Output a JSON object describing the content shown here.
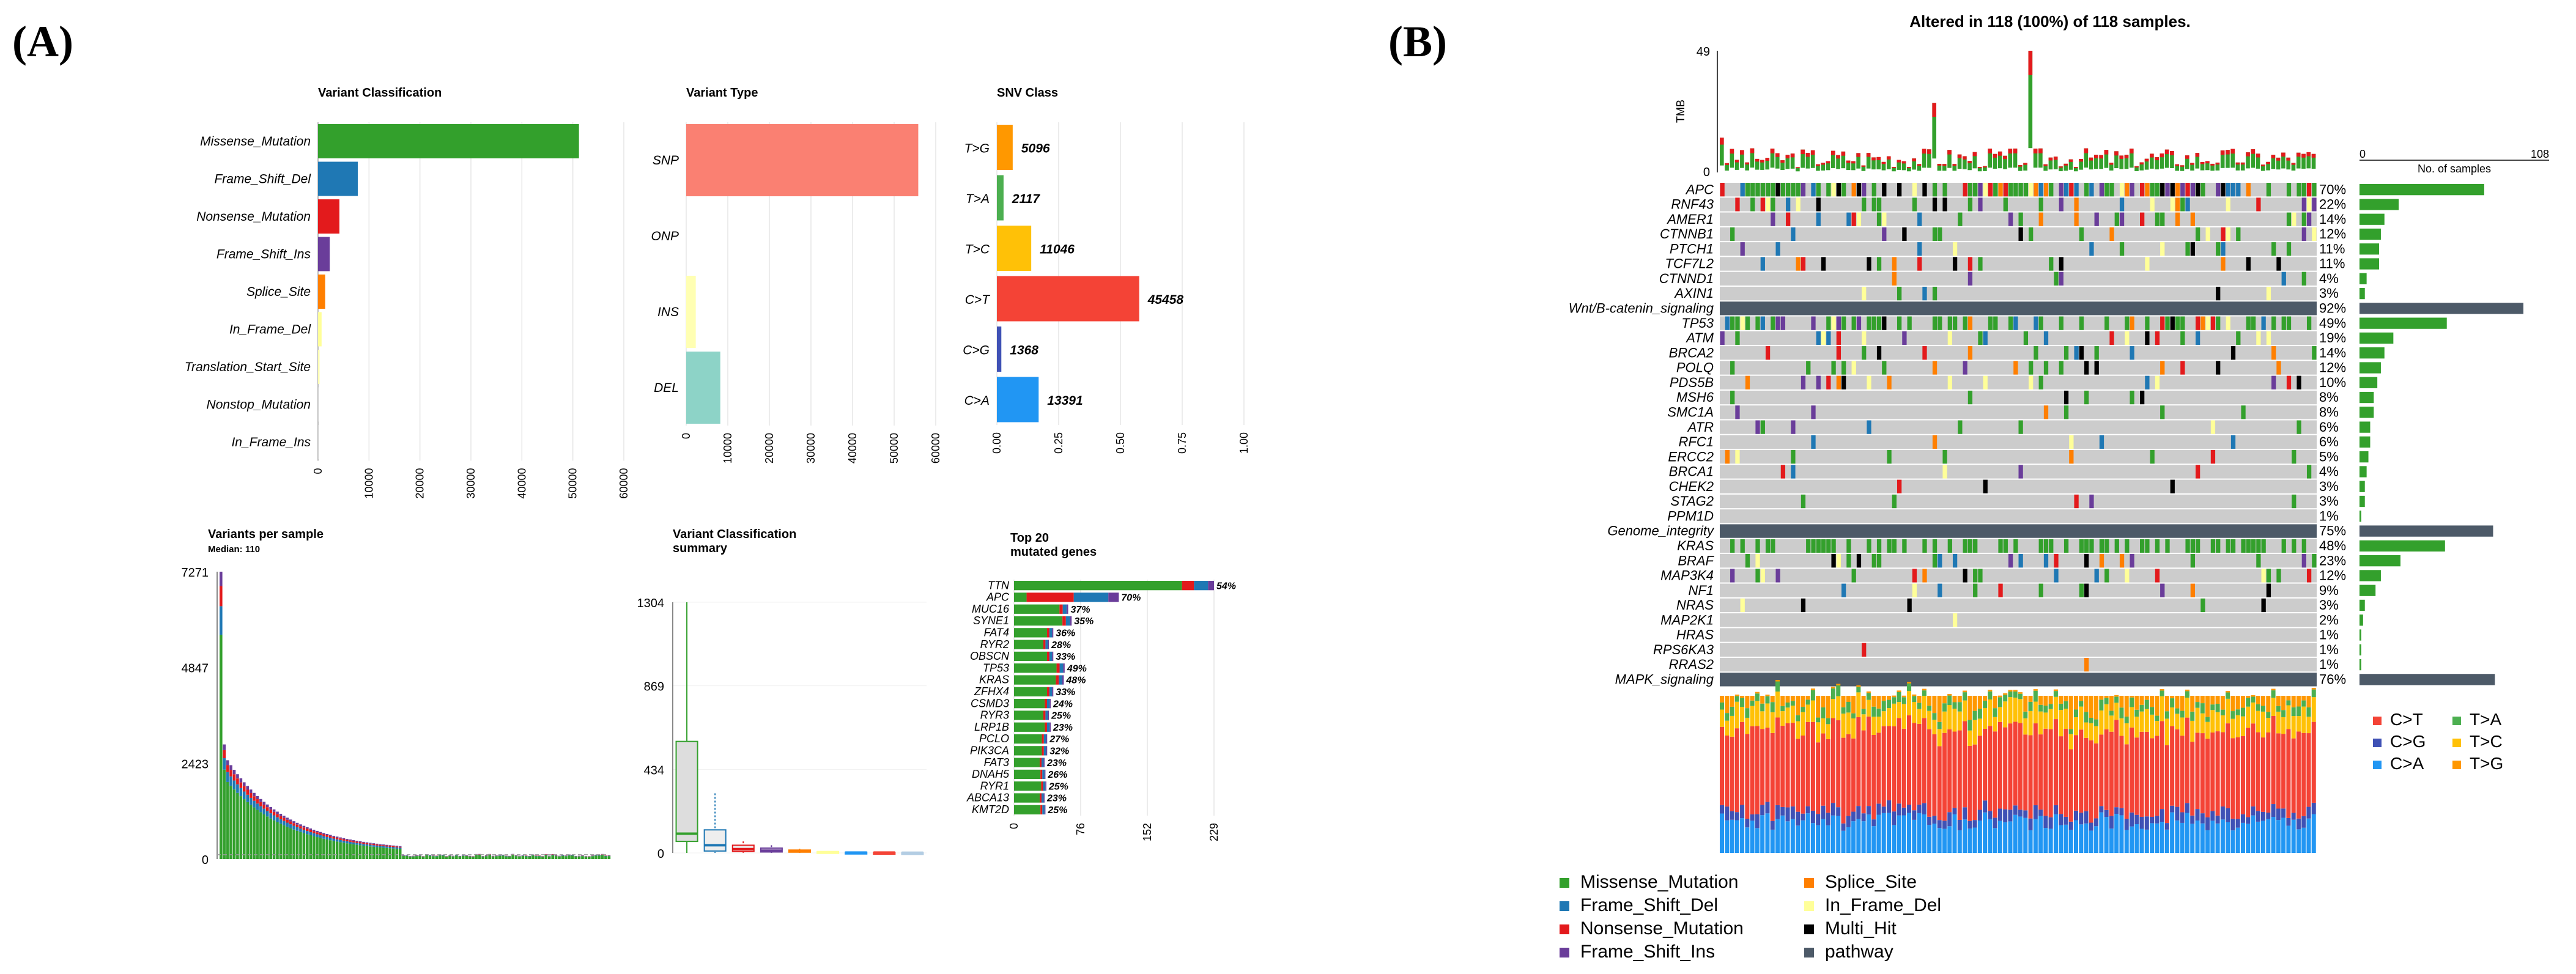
{
  "panels": {
    "a_label": "(A)",
    "b_label": "(B)"
  },
  "colors": {
    "missense": "#33a02c",
    "frameshift_del": "#1f78b4",
    "nonsense": "#e31a1c",
    "frameshift_ins": "#6a3d9a",
    "splice": "#ff7f00",
    "inframe_del": "#ffff99",
    "multihit": "#000000",
    "pathway": "#4d5a68",
    "grey": "#cccccc",
    "snp": "#fa8072",
    "ins": "#ffffb3",
    "del": "#8dd3c7",
    "ct": "#f44336",
    "ta": "#4caf50",
    "cg": "#3f51b5",
    "tc": "#ffc107",
    "ca": "#2196f3",
    "tg": "#ff9800"
  },
  "chart_data": [
    {
      "id": "variant_classification",
      "type": "bar",
      "orientation": "horizontal",
      "title": "Variant Classification",
      "categories": [
        "Missense_Mutation",
        "Frame_Shift_Del",
        "Nonsense_Mutation",
        "Frame_Shift_Ins",
        "Splice_Site",
        "In_Frame_Del",
        "Translation_Start_Site",
        "Nonstop_Mutation",
        "In_Frame_Ins"
      ],
      "values": [
        51200,
        7800,
        4200,
        2300,
        1400,
        700,
        300,
        80,
        40
      ],
      "xlim": [
        0,
        60000
      ],
      "xticks": [
        "0",
        "10000",
        "20000",
        "30000",
        "40000",
        "50000",
        "60000"
      ]
    },
    {
      "id": "variant_type",
      "type": "bar",
      "orientation": "horizontal",
      "title": "Variant Type",
      "categories": [
        "SNP",
        "ONP",
        "INS",
        "DEL"
      ],
      "values": [
        55800,
        80,
        2300,
        8200
      ],
      "xlim": [
        0,
        60000
      ],
      "xticks": [
        "0",
        "10000",
        "20000",
        "30000",
        "40000",
        "50000",
        "60000"
      ]
    },
    {
      "id": "snv_class",
      "type": "bar",
      "orientation": "horizontal",
      "title": "SNV Class",
      "categories": [
        "T>G",
        "T>A",
        "T>C",
        "C>T",
        "C>G",
        "C>A"
      ],
      "values": [
        0.064,
        0.027,
        0.139,
        0.576,
        0.018,
        0.169
      ],
      "labels": [
        "5096",
        "2117",
        "11046",
        "45458",
        "1368",
        "13391"
      ],
      "xlim": [
        0,
        1
      ],
      "xticks": [
        "0.00",
        "0.25",
        "0.50",
        "0.75",
        "1.00"
      ]
    },
    {
      "id": "variants_per_sample",
      "type": "bar",
      "title": "Variants per sample",
      "subtitle": "Median: 110",
      "ylim": [
        0,
        7271
      ],
      "yticks": [
        "0",
        "2423",
        "4847",
        "7271"
      ],
      "n_samples": 118
    },
    {
      "id": "vc_summary",
      "type": "boxplot",
      "title": "Variant Classification",
      "title2": "summary",
      "ylim": [
        0,
        1304
      ],
      "yticks": [
        "0",
        "434",
        "869",
        "1304"
      ],
      "boxes": [
        {
          "name": "Missense_Mutation",
          "min": 0,
          "q1": 60,
          "median": 100,
          "q3": 580,
          "max": 1304
        },
        {
          "name": "Frame_Shift_Del",
          "min": 0,
          "q1": 10,
          "median": 40,
          "q3": 120,
          "max": 310
        },
        {
          "name": "Nonsense_Mutation",
          "min": 0,
          "q1": 8,
          "median": 20,
          "q3": 40,
          "max": 60
        },
        {
          "name": "Frame_Shift_Ins",
          "min": 0,
          "q1": 5,
          "median": 12,
          "q3": 25,
          "max": 40
        },
        {
          "name": "Splice_Site",
          "min": 0,
          "q1": 4,
          "median": 8,
          "q3": 15,
          "max": 22
        },
        {
          "name": "In_Frame_Del",
          "min": 0,
          "q1": 2,
          "median": 4,
          "q3": 7,
          "max": 10
        },
        {
          "name": "Translation_Start_Site",
          "min": 0,
          "q1": 1,
          "median": 2,
          "q3": 4,
          "max": 6
        },
        {
          "name": "Nonstop_Mutation",
          "min": 0,
          "q1": 1,
          "median": 2,
          "q3": 3,
          "max": 4
        },
        {
          "name": "In_Frame_Ins",
          "min": 0,
          "q1": 1,
          "median": 1,
          "q3": 2,
          "max": 3
        }
      ]
    },
    {
      "id": "top20_genes",
      "type": "bar",
      "orientation": "horizontal",
      "stacked": true,
      "title": "Top 20",
      "title2": "mutated genes",
      "xlim": [
        0,
        229
      ],
      "xticks": [
        "0",
        "76",
        "152",
        "229"
      ],
      "genes": [
        "TTN",
        "APC",
        "MUC16",
        "SYNE1",
        "FAT4",
        "RYR2",
        "OBSCN",
        "TP53",
        "KRAS",
        "ZFHX4",
        "CSMD3",
        "RYR3",
        "LRP1B",
        "PCLO",
        "PIK3CA",
        "FAT3",
        "DNAH5",
        "RYR1",
        "ABCA13",
        "KMT2D"
      ],
      "totals": [
        229,
        120,
        62,
        66,
        45,
        40,
        45,
        58,
        57,
        45,
        42,
        40,
        42,
        38,
        38,
        35,
        36,
        37,
        35,
        36
      ],
      "percents": [
        "54%",
        "70%",
        "37%",
        "35%",
        "36%",
        "28%",
        "33%",
        "49%",
        "48%",
        "33%",
        "24%",
        "25%",
        "23%",
        "27%",
        "32%",
        "23%",
        "26%",
        "25%",
        "23%",
        "25%"
      ]
    },
    {
      "id": "oncoplot",
      "type": "heatmap",
      "title": "Altered in 118 (100%) of 118 samples.",
      "tmb_label": "TMB",
      "tmb_max": "49",
      "tmb_min": "0",
      "samples_axis": {
        "label": "No. of samples",
        "min": "0",
        "max": "108"
      },
      "rows": [
        {
          "gene": "APC",
          "pct": "70%",
          "pathway": false
        },
        {
          "gene": "RNF43",
          "pct": "22%",
          "pathway": false
        },
        {
          "gene": "AMER1",
          "pct": "14%",
          "pathway": false
        },
        {
          "gene": "CTNNB1",
          "pct": "12%",
          "pathway": false
        },
        {
          "gene": "PTCH1",
          "pct": "11%",
          "pathway": false
        },
        {
          "gene": "TCF7L2",
          "pct": "11%",
          "pathway": false
        },
        {
          "gene": "CTNND1",
          "pct": "4%",
          "pathway": false
        },
        {
          "gene": "AXIN1",
          "pct": "3%",
          "pathway": false
        },
        {
          "gene": "Wnt/B-catenin_signaling",
          "pct": "92%",
          "pathway": true
        },
        {
          "gene": "TP53",
          "pct": "49%",
          "pathway": false
        },
        {
          "gene": "ATM",
          "pct": "19%",
          "pathway": false
        },
        {
          "gene": "BRCA2",
          "pct": "14%",
          "pathway": false
        },
        {
          "gene": "POLQ",
          "pct": "12%",
          "pathway": false
        },
        {
          "gene": "PDS5B",
          "pct": "10%",
          "pathway": false
        },
        {
          "gene": "MSH6",
          "pct": "8%",
          "pathway": false
        },
        {
          "gene": "SMC1A",
          "pct": "8%",
          "pathway": false
        },
        {
          "gene": "ATR",
          "pct": "6%",
          "pathway": false
        },
        {
          "gene": "RFC1",
          "pct": "6%",
          "pathway": false
        },
        {
          "gene": "ERCC2",
          "pct": "5%",
          "pathway": false
        },
        {
          "gene": "BRCA1",
          "pct": "4%",
          "pathway": false
        },
        {
          "gene": "CHEK2",
          "pct": "3%",
          "pathway": false
        },
        {
          "gene": "STAG2",
          "pct": "3%",
          "pathway": false
        },
        {
          "gene": "PPM1D",
          "pct": "1%",
          "pathway": false
        },
        {
          "gene": "Genome_integrity",
          "pct": "75%",
          "pathway": true
        },
        {
          "gene": "KRAS",
          "pct": "48%",
          "pathway": false
        },
        {
          "gene": "BRAF",
          "pct": "23%",
          "pathway": false
        },
        {
          "gene": "MAP3K4",
          "pct": "12%",
          "pathway": false
        },
        {
          "gene": "NF1",
          "pct": "9%",
          "pathway": false
        },
        {
          "gene": "NRAS",
          "pct": "3%",
          "pathway": false
        },
        {
          "gene": "MAP2K1",
          "pct": "2%",
          "pathway": false
        },
        {
          "gene": "HRAS",
          "pct": "1%",
          "pathway": false
        },
        {
          "gene": "RPS6KA3",
          "pct": "1%",
          "pathway": false
        },
        {
          "gene": "RRAS2",
          "pct": "1%",
          "pathway": false
        },
        {
          "gene": "MAPK_signaling",
          "pct": "76%",
          "pathway": true
        }
      ]
    }
  ],
  "legends": {
    "titv": [
      "C>T",
      "T>A",
      "C>G",
      "T>C",
      "C>A",
      "T>G"
    ],
    "variants": [
      "Missense_Mutation",
      "Splice_Site",
      "Frame_Shift_Del",
      "In_Frame_Del",
      "Nonsense_Mutation",
      "Multi_Hit",
      "Frame_Shift_Ins",
      "pathway"
    ]
  }
}
